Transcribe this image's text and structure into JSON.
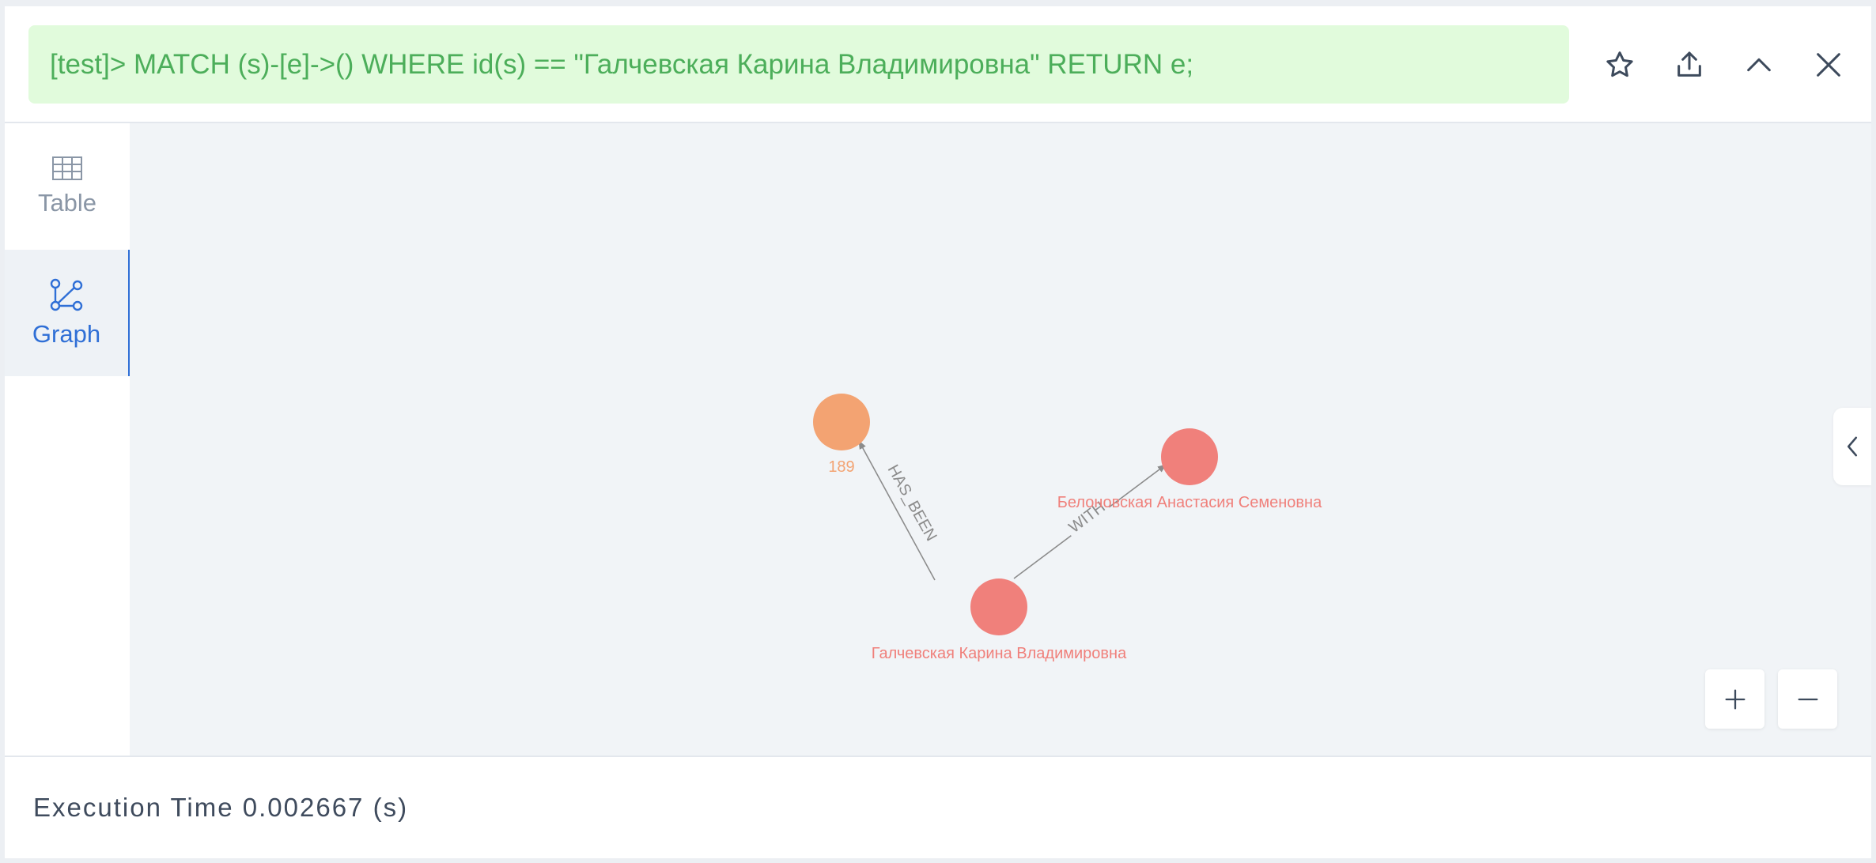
{
  "query": {
    "text": "[test]> MATCH (s)-[e]->() WHERE id(s) == \"Галчевская Карина Владимировна\" RETURN e;"
  },
  "header_actions": {
    "favorite": "star-icon",
    "export": "export-icon",
    "collapse": "chevron-up-icon",
    "close": "close-icon"
  },
  "sidebar": {
    "items": [
      {
        "label": "Table",
        "icon": "table-icon",
        "active": false
      },
      {
        "label": "Graph",
        "icon": "graph-icon",
        "active": true
      }
    ]
  },
  "graph": {
    "nodes": [
      {
        "label": "189",
        "color": "#f3a372"
      },
      {
        "label": "Белоновская Анастасия Семеновна",
        "color": "#f0807b"
      },
      {
        "label": "Галчевская Карина Владимировна",
        "color": "#f0807b"
      }
    ],
    "edges": [
      {
        "label": "HAS_BEEN"
      },
      {
        "label": "WITH"
      }
    ]
  },
  "zoom": {
    "in": "plus-icon",
    "out": "minus-icon"
  },
  "footer": {
    "execution": "Execution Time 0.002667 (s)"
  },
  "colors": {
    "query_bg": "#e1fbdc",
    "query_text": "#4cae5a",
    "accent": "#2f6fd6",
    "canvas_bg": "#f1f4f7"
  }
}
